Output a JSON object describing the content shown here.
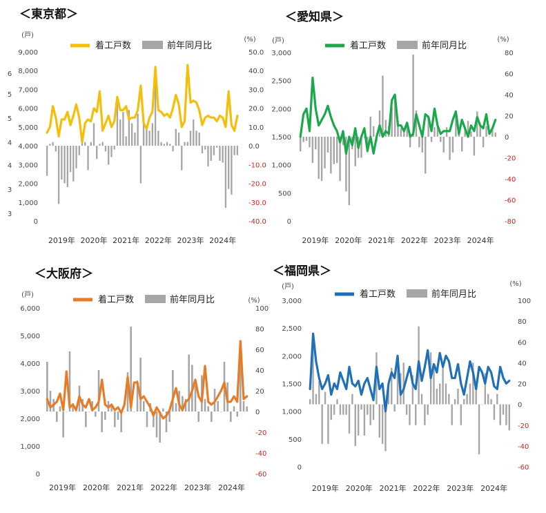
{
  "chart_data": [
    {
      "type": "bar+line",
      "title": "＜東京都＞",
      "left_unit": "(戸)",
      "right_unit": "(%)",
      "left_ylim": [
        0,
        9000
      ],
      "left_ticks": [
        "0",
        "1,000",
        "2,000",
        "3,000",
        "4,000",
        "5,000",
        "6,000",
        "7,000",
        "8,000",
        "9,000"
      ],
      "right_ylim": [
        -40,
        50
      ],
      "right_ticks": [
        "-40.0",
        "-30.0",
        "-20.0",
        "-10.0",
        "0.0",
        "10.0",
        "20.0",
        "30.0",
        "40.0",
        "50.0"
      ],
      "x_ticks": [
        "2019年",
        "2020年",
        "2021年",
        "2022年",
        "2023年",
        "2024年"
      ],
      "line_name": "着工戸数",
      "bar_name": "前年同月比",
      "line_color": "#f5be0b",
      "stray_labels": [
        "6",
        "5",
        "5",
        "4",
        "4",
        "3",
        "3"
      ],
      "line_values": [
        4700,
        5000,
        6100,
        5500,
        4500,
        5400,
        5400,
        5800,
        5100,
        5600,
        6200,
        5500,
        4200,
        5200,
        5400,
        5300,
        6000,
        5800,
        6900,
        4800,
        5200,
        5600,
        5000,
        5300,
        6600,
        5900,
        5900,
        6100,
        5400,
        5500,
        5500,
        5900,
        7200,
        5200,
        4900,
        5500,
        5800,
        8200,
        5900,
        5800,
        5600,
        5700,
        5500,
        6000,
        6700,
        6200,
        5000,
        5300,
        8300,
        6300,
        6400,
        6300,
        5900,
        5100,
        5500,
        5600,
        5500,
        5500,
        5300,
        5600,
        5500,
        5000,
        6900,
        5100,
        4800,
        5600
      ],
      "bar_values": [
        -16,
        1,
        2,
        -3,
        -31,
        -18,
        -20,
        -22,
        -14,
        -19,
        -12,
        -5,
        4,
        2,
        -13,
        2,
        12,
        -7,
        1,
        2,
        -3,
        -10,
        -6,
        -2,
        24,
        14,
        18,
        5,
        19,
        12,
        7,
        17,
        -20,
        14,
        10,
        8,
        12,
        42,
        8,
        2,
        1,
        2,
        1,
        -3,
        9,
        7,
        -13,
        2,
        2,
        8,
        14,
        8,
        7,
        -4,
        -2,
        -11,
        -8,
        -5,
        -1,
        -8,
        -9,
        -33,
        -23,
        -26,
        -5,
        -5
      ]
    },
    {
      "type": "bar+line",
      "title": "＜愛知県＞",
      "left_unit": "(戸)",
      "right_unit": "(%)",
      "left_ylim": [
        0,
        3000
      ],
      "left_ticks": [
        "0",
        "500",
        "1,000",
        "1,500",
        "2,000",
        "2,500",
        "3,000"
      ],
      "right_ylim": [
        -80,
        80
      ],
      "right_ticks": [
        "-80",
        "-60",
        "-40",
        "-20",
        "0",
        "20",
        "40",
        "60",
        "80"
      ],
      "x_ticks": [
        "2019年",
        "2020年",
        "2021年",
        "2022年",
        "2023年",
        "2024年"
      ],
      "line_name": "着工戸数",
      "bar_name": "前年同月比",
      "line_color": "#1aa84a",
      "stray_labels": [],
      "line_values": [
        1500,
        1900,
        2000,
        1600,
        2550,
        2000,
        1700,
        1800,
        1900,
        2050,
        1850,
        1700,
        1600,
        1400,
        1600,
        1200,
        1500,
        1350,
        1650,
        1300,
        1500,
        1650,
        1250,
        1500,
        1200,
        1500,
        1700,
        1500,
        1600,
        1550,
        2150,
        2250,
        1700,
        1700,
        1600,
        1750,
        1500,
        1550,
        1900,
        1700,
        1500,
        1900,
        1850,
        1600,
        2000,
        1700,
        1550,
        1600,
        1600,
        1600,
        1800,
        1950,
        1550,
        1800,
        1650,
        1500,
        1700,
        1600,
        1850,
        1700,
        1650,
        1900,
        1550,
        1650,
        1800
      ],
      "bar_values": [
        -14,
        -5,
        -4,
        -10,
        -25,
        -12,
        -40,
        -42,
        -30,
        -15,
        -35,
        -26,
        -25,
        -42,
        -8,
        -52,
        -65,
        -12,
        -28,
        -20,
        -20,
        -1,
        -15,
        19,
        10,
        -5,
        25,
        58,
        16,
        10,
        28,
        35,
        15,
        8,
        8,
        12,
        -10,
        78,
        25,
        -10,
        -15,
        -35,
        20,
        -5,
        9,
        12,
        -5,
        -15,
        9,
        -22,
        -15,
        24,
        5,
        -14,
        9,
        15,
        5,
        -18,
        24,
        10,
        -10,
        10,
        0,
        9,
        4
      ]
    },
    {
      "type": "bar+line",
      "title": "＜大阪府＞",
      "left_unit": "(戸)",
      "right_unit": "(%)",
      "left_ylim": [
        0,
        6000
      ],
      "left_ticks": [
        "0",
        "1,000",
        "2,000",
        "3,000",
        "4,000",
        "5,000",
        "6,000"
      ],
      "right_ylim": [
        -60,
        100
      ],
      "right_ticks": [
        "-60",
        "-40",
        "-20",
        "0",
        "20",
        "40",
        "60",
        "80",
        "100"
      ],
      "x_ticks": [
        "2019年",
        "2020年",
        "2021年",
        "2022年",
        "2023年",
        "2024年"
      ],
      "line_name": "着工戸数",
      "bar_name": "前年同月比",
      "line_color": "#e87c24",
      "stray_labels": [],
      "line_values": [
        2700,
        2400,
        2500,
        2600,
        2900,
        2300,
        3700,
        2400,
        2500,
        2300,
        2800,
        2500,
        2400,
        2700,
        2300,
        2400,
        2600,
        3400,
        2500,
        2400,
        2500,
        2300,
        2400,
        2200,
        2500,
        3500,
        2400,
        3300,
        3300,
        2700,
        2800,
        2600,
        2400,
        2100,
        2400,
        2200,
        2000,
        2100,
        2300,
        2700,
        3100,
        2500,
        2300,
        2600,
        2700,
        3000,
        3400,
        2800,
        2600,
        3900,
        2600,
        2500,
        2600,
        2800,
        3000,
        3300,
        2600,
        2600,
        2800,
        2600,
        4800,
        2700,
        2800
      ],
      "bar_values": [
        48,
        20,
        12,
        -10,
        5,
        -25,
        0,
        58,
        8,
        0,
        25,
        12,
        -15,
        0,
        10,
        -5,
        40,
        -20,
        -8,
        10,
        5,
        -15,
        -8,
        -20,
        0,
        38,
        82,
        0,
        30,
        52,
        10,
        -15,
        8,
        -15,
        -25,
        -30,
        3,
        -20,
        -10,
        40,
        8,
        20,
        15,
        12,
        55,
        45,
        25,
        -10,
        35,
        12,
        5,
        -10,
        22,
        10,
        0,
        48,
        28,
        -10,
        5,
        -5,
        58,
        10,
        5
      ]
    },
    {
      "type": "bar+line",
      "title": "＜福岡県＞",
      "left_unit": "(戸)",
      "right_unit": "(%)",
      "left_ylim": [
        0,
        3000
      ],
      "left_ticks": [
        "0",
        "500",
        "1,000",
        "1,500",
        "2,000",
        "2,500",
        "3,000"
      ],
      "right_ylim": [
        -60,
        100
      ],
      "right_ticks": [
        "-60",
        "-40",
        "-20",
        "0",
        "20",
        "40",
        "60",
        "80",
        "100"
      ],
      "x_ticks": [
        "2019年",
        "2020年",
        "2021年",
        "2022年",
        "2023年",
        "2024年"
      ],
      "line_name": "着工戸数",
      "bar_name": "前年同月比",
      "line_color": "#1f70b8",
      "stray_labels": [],
      "line_values": [
        1400,
        2400,
        1900,
        1600,
        1400,
        1500,
        1650,
        1300,
        1500,
        1400,
        1700,
        1550,
        1400,
        1800,
        1500,
        1450,
        1550,
        1300,
        1500,
        1600,
        1400,
        1200,
        1800,
        1400,
        1500,
        1000,
        1500,
        1700,
        1600,
        2000,
        1300,
        1400,
        1600,
        1800,
        1500,
        1400,
        1900,
        1550,
        1800,
        2100,
        1600,
        1850,
        1700,
        2050,
        1800,
        2000,
        1900,
        1600,
        1600,
        1850,
        1500,
        1300,
        1600,
        1900,
        1700,
        1400,
        1800,
        1700,
        1500,
        1800,
        1700,
        1450,
        1400,
        1800,
        1600,
        1500,
        1550
      ],
      "bar_values": [
        5,
        60,
        10,
        22,
        -38,
        12,
        -38,
        -15,
        -10,
        5,
        -10,
        -10,
        -10,
        -28,
        10,
        -40,
        -30,
        -5,
        -30,
        -10,
        -20,
        -15,
        50,
        -32,
        -38,
        -45,
        20,
        35,
        -7,
        40,
        30,
        40,
        -10,
        -20,
        28,
        -20,
        75,
        10,
        -20,
        -10,
        50,
        35,
        15,
        20,
        40,
        20,
        10,
        -20,
        5,
        15,
        -20,
        5,
        10,
        20,
        40,
        15,
        -48,
        0,
        30,
        10,
        5,
        -15,
        10,
        -20,
        -10,
        -20,
        -25
      ]
    }
  ]
}
